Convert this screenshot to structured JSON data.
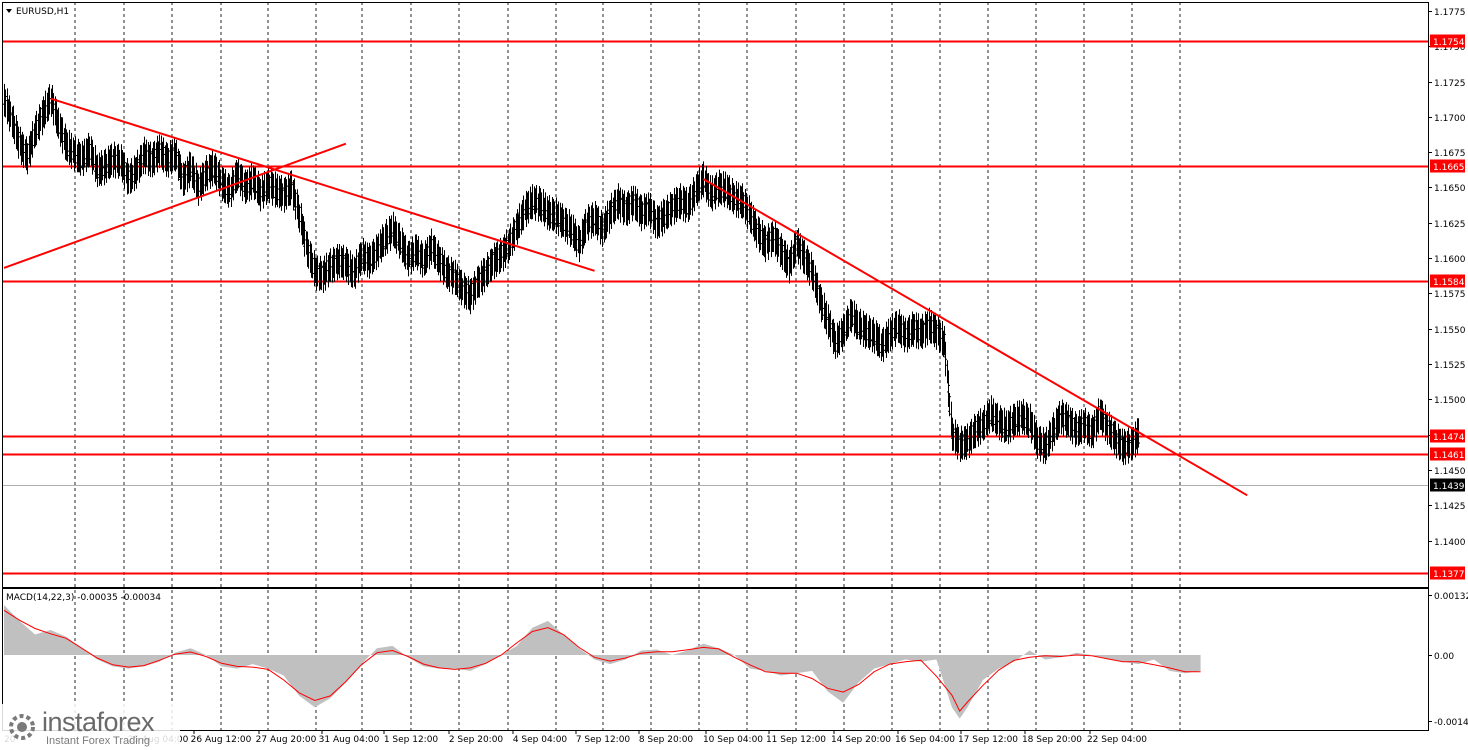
{
  "chart_data": {
    "type": "candlestick",
    "symbol_label": "EURUSD,H1",
    "x_tick_labels": [
      "26 Aug 12:00",
      "27 Aug 20:00",
      "31 Aug 04:00",
      "1 Sep 12:00",
      "2 Sep 20:00",
      "4 Sep 04:00",
      "7 Sep 12:00",
      "8 Sep 20:00",
      "10 Sep 04:00",
      "11 Sep 12:00",
      "14 Sep 20:00",
      "16 Sep 04:00",
      "17 Sep 12:00",
      "18 Sep 20:00",
      "22 Sep 04:00"
    ],
    "x_tick_partial_left": "25 Aug 04:00",
    "first_x_tick_fragment": "20",
    "price_axis_ticks": [
      "1.1775",
      "1.1750",
      "1.1725",
      "1.1700",
      "1.1675",
      "1.1650",
      "1.1625",
      "1.1600",
      "1.1575",
      "1.1550",
      "1.1525",
      "1.1500",
      "1.1475",
      "1.1450",
      "1.1425",
      "1.1400"
    ],
    "ylim": [
      1.1367,
      1.1782
    ],
    "current_price": 1.1439,
    "current_price_label": "1.1439",
    "horizontal_levels": [
      {
        "value": 1.1754,
        "label": "1.1754"
      },
      {
        "value": 1.1665,
        "label": "1.1665"
      },
      {
        "value": 1.1584,
        "label": "1.1584"
      },
      {
        "value": 1.1474,
        "label": "1.1474"
      },
      {
        "value": 1.1461,
        "label": "1.1461"
      },
      {
        "value": 1.1377,
        "label": "1.1377"
      }
    ],
    "trendlines": [
      {
        "from": [
          0,
          1.1713
        ],
        "to": [
          70,
          1.1591
        ]
      },
      {
        "from": [
          -6,
          1.1593
        ],
        "to": [
          38,
          1.1681
        ]
      },
      {
        "from": [
          84,
          1.1656
        ],
        "to": [
          154,
          1.1432
        ]
      }
    ],
    "price_path": [
      [
        -6,
        1.1712
      ],
      [
        -5,
        1.1698
      ],
      [
        -4,
        1.168
      ],
      [
        -3,
        1.1672
      ],
      [
        -2,
        1.169
      ],
      [
        -1,
        1.1702
      ],
      [
        0,
        1.1713
      ],
      [
        1,
        1.1694
      ],
      [
        2,
        1.168
      ],
      [
        3,
        1.1674
      ],
      [
        4,
        1.167
      ],
      [
        5,
        1.1677
      ],
      [
        6,
        1.1662
      ],
      [
        7,
        1.1665
      ],
      [
        8,
        1.167
      ],
      [
        9,
        1.1668
      ],
      [
        10,
        1.1656
      ],
      [
        11,
        1.1662
      ],
      [
        12,
        1.1673
      ],
      [
        13,
        1.1669
      ],
      [
        14,
        1.1676
      ],
      [
        15,
        1.1669
      ],
      [
        16,
        1.1674
      ],
      [
        17,
        1.1655
      ],
      [
        18,
        1.1664
      ],
      [
        19,
        1.165
      ],
      [
        20,
        1.166
      ],
      [
        21,
        1.1664
      ],
      [
        22,
        1.1653
      ],
      [
        23,
        1.1647
      ],
      [
        24,
        1.166
      ],
      [
        25,
        1.165
      ],
      [
        26,
        1.1655
      ],
      [
        27,
        1.1646
      ],
      [
        28,
        1.1652
      ],
      [
        29,
        1.1648
      ],
      [
        30,
        1.1645
      ],
      [
        31,
        1.165
      ],
      [
        32,
        1.163
      ],
      [
        33,
        1.1606
      ],
      [
        34,
        1.159
      ],
      [
        35,
        1.1588
      ],
      [
        36,
        1.1594
      ],
      [
        37,
        1.1598
      ],
      [
        38,
        1.1596
      ],
      [
        39,
        1.1589
      ],
      [
        40,
        1.1602
      ],
      [
        41,
        1.1598
      ],
      [
        42,
        1.1605
      ],
      [
        43,
        1.1614
      ],
      [
        44,
        1.162
      ],
      [
        45,
        1.1611
      ],
      [
        46,
        1.16
      ],
      [
        47,
        1.1605
      ],
      [
        48,
        1.1598
      ],
      [
        49,
        1.1608
      ],
      [
        50,
        1.1598
      ],
      [
        51,
        1.159
      ],
      [
        52,
        1.1586
      ],
      [
        53,
        1.1578
      ],
      [
        54,
        1.1573
      ],
      [
        55,
        1.1583
      ],
      [
        56,
        1.159
      ],
      [
        57,
        1.1598
      ],
      [
        58,
        1.1602
      ],
      [
        59,
        1.161
      ],
      [
        60,
        1.1622
      ],
      [
        61,
        1.1634
      ],
      [
        62,
        1.164
      ],
      [
        63,
        1.1638
      ],
      [
        64,
        1.1632
      ],
      [
        65,
        1.163
      ],
      [
        66,
        1.1625
      ],
      [
        67,
        1.162
      ],
      [
        68,
        1.161
      ],
      [
        69,
        1.1625
      ],
      [
        70,
        1.1628
      ],
      [
        71,
        1.162
      ],
      [
        72,
        1.1632
      ],
      [
        73,
        1.164
      ],
      [
        74,
        1.1634
      ],
      [
        75,
        1.164
      ],
      [
        76,
        1.1632
      ],
      [
        77,
        1.1635
      ],
      [
        78,
        1.1625
      ],
      [
        79,
        1.163
      ],
      [
        80,
        1.1636
      ],
      [
        81,
        1.164
      ],
      [
        82,
        1.1637
      ],
      [
        83,
        1.1648
      ],
      [
        84,
        1.1656
      ],
      [
        85,
        1.1645
      ],
      [
        86,
        1.165
      ],
      [
        87,
        1.1648
      ],
      [
        88,
        1.1642
      ],
      [
        89,
        1.164
      ],
      [
        90,
        1.163
      ],
      [
        91,
        1.1618
      ],
      [
        92,
        1.161
      ],
      [
        93,
        1.1615
      ],
      [
        94,
        1.1605
      ],
      [
        95,
        1.1595
      ],
      [
        96,
        1.161
      ],
      [
        97,
        1.16
      ],
      [
        98,
        1.159
      ],
      [
        99,
        1.157
      ],
      [
        100,
        1.1555
      ],
      [
        101,
        1.154
      ],
      [
        102,
        1.1548
      ],
      [
        103,
        1.156
      ],
      [
        104,
        1.1552
      ],
      [
        105,
        1.1548
      ],
      [
        106,
        1.1545
      ],
      [
        107,
        1.1538
      ],
      [
        108,
        1.1546
      ],
      [
        109,
        1.1552
      ],
      [
        110,
        1.1545
      ],
      [
        111,
        1.155
      ],
      [
        112,
        1.1547
      ],
      [
        113,
        1.1552
      ],
      [
        114,
        1.1548
      ],
      [
        115,
        1.154
      ],
      [
        116,
        1.1475
      ],
      [
        117,
        1.1468
      ],
      [
        118,
        1.147
      ],
      [
        119,
        1.1478
      ],
      [
        120,
        1.1482
      ],
      [
        121,
        1.149
      ],
      [
        122,
        1.1484
      ],
      [
        123,
        1.148
      ],
      [
        124,
        1.1485
      ],
      [
        125,
        1.1488
      ],
      [
        126,
        1.1484
      ],
      [
        127,
        1.147
      ],
      [
        128,
        1.1466
      ],
      [
        129,
        1.1478
      ],
      [
        130,
        1.1488
      ],
      [
        131,
        1.1484
      ],
      [
        132,
        1.1478
      ],
      [
        133,
        1.1482
      ],
      [
        134,
        1.1476
      ],
      [
        135,
        1.149
      ],
      [
        136,
        1.148
      ],
      [
        137,
        1.1472
      ],
      [
        138,
        1.1466
      ],
      [
        139,
        1.1468
      ],
      [
        140,
        1.1475
      ],
      [
        141,
        1.1472
      ],
      [
        142,
        1.1462
      ],
      [
        143,
        1.1448
      ],
      [
        144,
        1.1435
      ],
      [
        145,
        1.1438
      ],
      [
        146,
        1.1446
      ],
      [
        147,
        1.1442
      ],
      [
        148,
        1.1439
      ]
    ],
    "macd": {
      "label": "MACD(14,22,3) -0.00035 -0.00034",
      "axis_ticks": [
        "0.00132",
        "0.00",
        "-0.00144"
      ],
      "ylim": [
        -0.00144,
        0.00132
      ],
      "histogram": [
        [
          -6,
          0.0011
        ],
        [
          -4,
          0.00075
        ],
        [
          -2,
          0.00045
        ],
        [
          0,
          0.00055
        ],
        [
          2,
          0.0004
        ],
        [
          4,
          0.00015
        ],
        [
          6,
          -0.0001
        ],
        [
          8,
          -0.00025
        ],
        [
          10,
          -0.0003
        ],
        [
          12,
          -0.00025
        ],
        [
          14,
          -0.00015
        ],
        [
          16,
          5e-05
        ],
        [
          18,
          0.00015
        ],
        [
          20,
          0.0
        ],
        [
          22,
          -0.00025
        ],
        [
          24,
          -0.0003
        ],
        [
          26,
          -0.0002
        ],
        [
          28,
          -0.0003
        ],
        [
          30,
          -0.00045
        ],
        [
          32,
          -0.0009
        ],
        [
          34,
          -0.00115
        ],
        [
          36,
          -0.00095
        ],
        [
          38,
          -0.0006
        ],
        [
          40,
          -0.0002
        ],
        [
          42,
          0.00015
        ],
        [
          44,
          0.0002
        ],
        [
          46,
          -5e-05
        ],
        [
          48,
          -0.00025
        ],
        [
          50,
          -0.0003
        ],
        [
          52,
          -0.0003
        ],
        [
          54,
          -0.00035
        ],
        [
          56,
          -0.0002
        ],
        [
          58,
          0.0
        ],
        [
          60,
          0.0002
        ],
        [
          62,
          0.0006
        ],
        [
          64,
          0.00075
        ],
        [
          66,
          0.00045
        ],
        [
          68,
          0.00015
        ],
        [
          70,
          -0.0001
        ],
        [
          72,
          -0.0002
        ],
        [
          74,
          -0.0001
        ],
        [
          76,
          0.0001
        ],
        [
          78,
          0.00012
        ],
        [
          80,
          0.0
        ],
        [
          82,
          0.0001
        ],
        [
          84,
          0.00025
        ],
        [
          86,
          0.00015
        ],
        [
          88,
          0.0
        ],
        [
          90,
          -0.0003
        ],
        [
          92,
          -0.00035
        ],
        [
          94,
          -0.00045
        ],
        [
          96,
          -0.0004
        ],
        [
          98,
          -0.00035
        ],
        [
          100,
          -0.0008
        ],
        [
          102,
          -0.00105
        ],
        [
          104,
          -0.0006
        ],
        [
          106,
          -0.0003
        ],
        [
          108,
          -0.0002
        ],
        [
          110,
          -0.0001
        ],
        [
          112,
          -0.00015
        ],
        [
          114,
          -0.0001
        ],
        [
          116,
          -0.00115
        ],
        [
          117,
          -0.0014
        ],
        [
          118,
          -0.00115
        ],
        [
          120,
          -0.00055
        ],
        [
          122,
          -0.0003
        ],
        [
          124,
          -0.00015
        ],
        [
          126,
          0.0001
        ],
        [
          128,
          -0.0001
        ],
        [
          130,
          -5e-05
        ],
        [
          132,
          5e-05
        ],
        [
          134,
          0.0
        ],
        [
          136,
          -0.0001
        ],
        [
          138,
          -0.00015
        ],
        [
          140,
          -0.0002
        ],
        [
          142,
          -0.0001
        ],
        [
          144,
          -0.00035
        ],
        [
          146,
          -0.0004
        ],
        [
          148,
          -0.00035
        ]
      ]
    },
    "grid": "vertical-dashed",
    "colors": {
      "background": "#ffffff",
      "bars": "#000000",
      "levels": "#ff0000",
      "level_label_bg": "#ff0000",
      "level_label_text": "#ffffff",
      "current_price_bg": "#000000",
      "macd_hist": "#c0c0c0",
      "macd_signal": "#ff0000"
    }
  },
  "watermark": {
    "brand": "instaforex",
    "tagline": "Instant Forex Trading"
  }
}
